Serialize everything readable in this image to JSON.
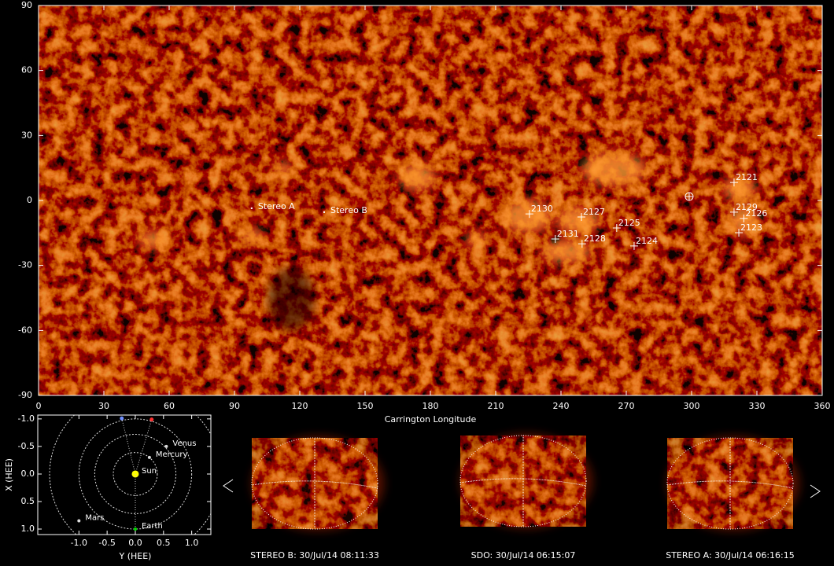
{
  "chart_data": [
    {
      "type": "map",
      "xlabel": "Carrington Longitude",
      "xlim": [
        0,
        360
      ],
      "xticks": [
        0,
        30,
        60,
        90,
        120,
        150,
        180,
        210,
        240,
        270,
        300,
        330,
        360
      ],
      "ylim": [
        -90,
        90
      ],
      "yticks": [
        -90,
        -60,
        -30,
        0,
        30,
        60,
        90
      ],
      "regions": {
        "labels": [
          "2121",
          "2129",
          "2126",
          "2123",
          "2130",
          "2127",
          "2125",
          "2131",
          "2128",
          "2124"
        ],
        "x": [
          319.5,
          319.5,
          324,
          321.7,
          225.5,
          249.4,
          265.6,
          237.4,
          249.7,
          273.6
        ],
        "values": [
          8.3,
          -5.4,
          -8.3,
          -14.9,
          -6.2,
          -7.6,
          -12.7,
          -17.8,
          -20,
          -21
        ]
      },
      "spacecraft": {
        "labels": [
          "Stereo A",
          "Stereo B"
        ],
        "x": [
          97.9,
          131.2
        ],
        "values": [
          -3.6,
          -5.4
        ]
      },
      "earth": {
        "x": 298.9,
        "y": 1.8
      }
    },
    {
      "type": "orbit",
      "xlabel": "Y (HEE)",
      "ylabel": "X (HEE)",
      "xlim": [
        -1.73,
        1.34
      ],
      "xticks": [
        {
          "value": -1,
          "label": "-1.0"
        },
        {
          "value": -0.5,
          "label": "-0.5"
        },
        {
          "value": 0,
          "label": "0.0"
        },
        {
          "value": 0.5,
          "label": "0.5"
        },
        {
          "value": 1,
          "label": "1.0"
        }
      ],
      "ylim": [
        -1.07,
        1.1
      ],
      "y_reversed": true,
      "yticks": [
        {
          "value": -1,
          "label": "-1.0"
        },
        {
          "value": -0.5,
          "label": "-0.5"
        },
        {
          "value": 0,
          "label": "0.0"
        },
        {
          "value": 0.5,
          "label": "0.5"
        },
        {
          "value": 1,
          "label": "1.0"
        }
      ],
      "orbits": [
        0.39,
        0.72,
        1.0,
        1.52
      ],
      "planets": [
        {
          "name": "Sun",
          "color": "#ffff00",
          "y": 0,
          "x": 0
        },
        {
          "name": "Mercury",
          "color": "#dddddd",
          "y": 0.25,
          "x": -0.3
        },
        {
          "name": "Venus",
          "color": "#dddddd",
          "y": 0.55,
          "x": -0.5
        },
        {
          "name": "Mars",
          "color": "#dddddd",
          "y": -1.0,
          "x": 0.85
        },
        {
          "name": "Earth",
          "color": "#00dd00",
          "y": 0,
          "x": 1.0
        }
      ],
      "spacecraft": [
        {
          "color": "#ff3030",
          "y": 0.29,
          "x": -0.99
        },
        {
          "color": "#6f8fff",
          "y": -0.24,
          "x": -1.01
        }
      ]
    }
  ],
  "panels": [
    {
      "caption": "STEREO B: 30/Jul/14 08:11:33"
    },
    {
      "caption": "SDO: 30/Jul/14 06:15:07"
    },
    {
      "caption": "STEREO A: 30/Jul/14 06:16:15"
    }
  ]
}
